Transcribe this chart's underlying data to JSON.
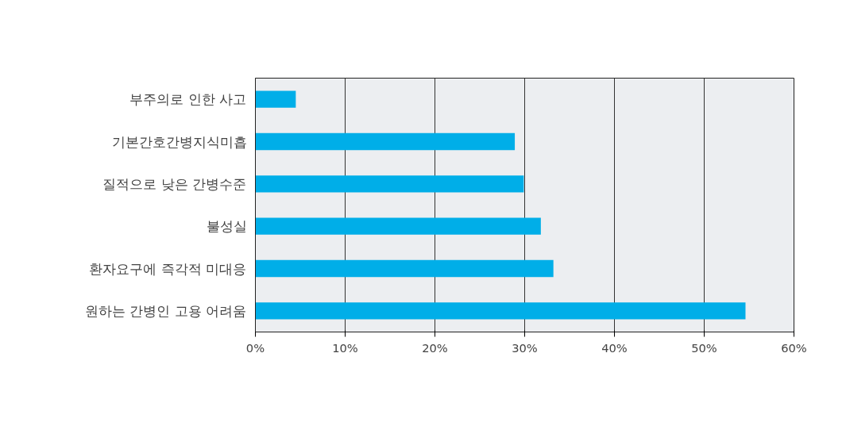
{
  "chart_data": {
    "type": "bar",
    "orientation": "horizontal",
    "categories": [
      "부주의로 인한 사고",
      "기본간호간병지식미흡",
      "질적으로 낮은 간병수준",
      "불성실",
      "환자요구에 즉각적 미대응",
      "원하는 간병인 고용 어려움"
    ],
    "values": [
      4.5,
      28.9,
      29.9,
      31.8,
      33.2,
      54.6
    ],
    "color": "#00aee8",
    "xlim": [
      0,
      60
    ],
    "xticks": [
      {
        "value": 0,
        "label": "0%"
      },
      {
        "value": 10,
        "label": "10%"
      },
      {
        "value": 20,
        "label": "20%"
      },
      {
        "value": 30,
        "label": "30%"
      },
      {
        "value": 40,
        "label": "40%"
      },
      {
        "value": 50,
        "label": "50%"
      },
      {
        "value": 60,
        "label": "60%"
      }
    ],
    "grid": "x"
  }
}
